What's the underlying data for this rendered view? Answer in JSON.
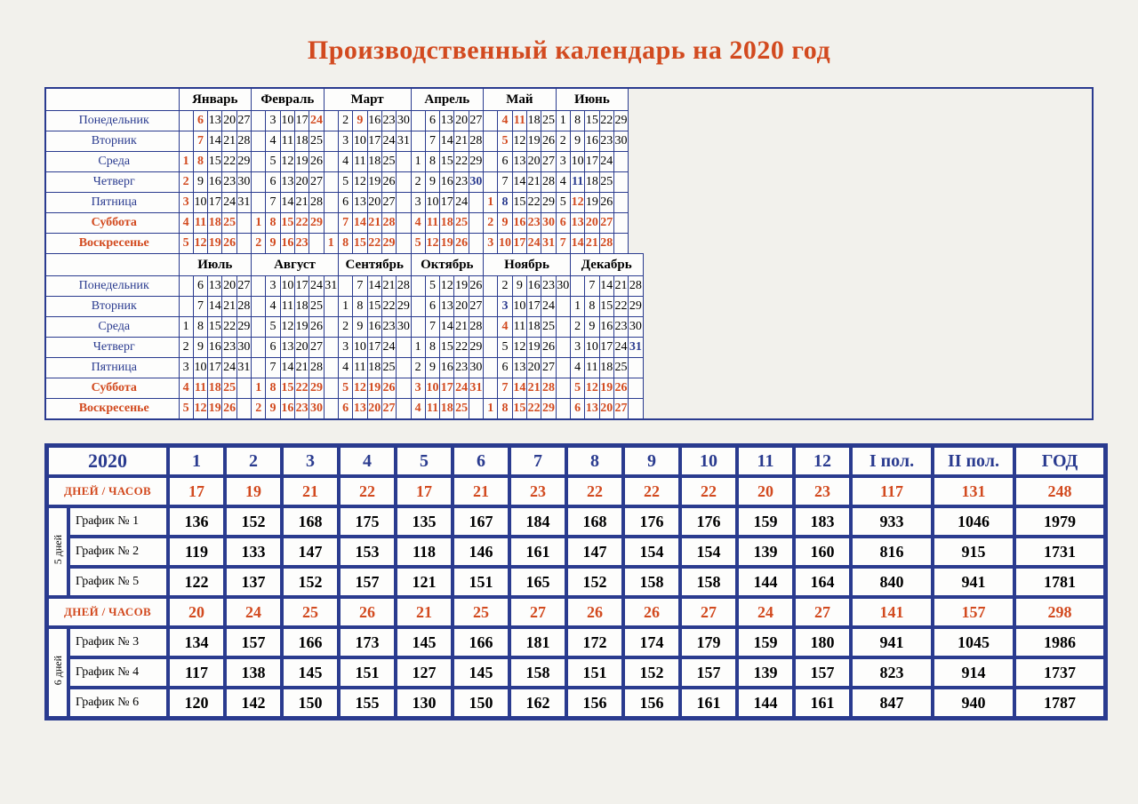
{
  "title": "Производственный календарь на 2020 год",
  "weekdays": [
    "Понедельник",
    "Вторник",
    "Среда",
    "Четверг",
    "Пятница",
    "Суббота",
    "Воскресенье"
  ],
  "weekend_rows": [
    5,
    6
  ],
  "months": [
    "Январь",
    "Февраль",
    "Март",
    "Апрель",
    "Май",
    "Июнь",
    "Июль",
    "Август",
    "Сентябрь",
    "Октябрь",
    "Ноябрь",
    "Декабрь"
  ],
  "month_cols": [
    5,
    5,
    6,
    5,
    5,
    5,
    5,
    6,
    5,
    5,
    6,
    5
  ],
  "month_start_dow": [
    2,
    5,
    6,
    2,
    4,
    0,
    2,
    5,
    1,
    3,
    6,
    1
  ],
  "month_len": [
    31,
    29,
    31,
    30,
    31,
    30,
    31,
    31,
    30,
    31,
    30,
    31
  ],
  "holidays": {
    "0": [
      1,
      2,
      3,
      4,
      5,
      6,
      7,
      8
    ],
    "1": [
      23,
      24
    ],
    "2": [
      8,
      9
    ],
    "4": [
      1,
      4,
      5,
      9,
      11
    ],
    "5": [
      12
    ],
    "10": [
      4
    ]
  },
  "preholidays": {
    "3": [
      30
    ],
    "4": [
      8
    ],
    "5": [
      11
    ],
    "10": [
      3
    ],
    "11": [
      31
    ]
  },
  "summary": {
    "year_label": "2020",
    "month_heads": [
      "1",
      "2",
      "3",
      "4",
      "5",
      "6",
      "7",
      "8",
      "9",
      "10",
      "11",
      "12"
    ],
    "half1": "I пол.",
    "half2": "II пол.",
    "year_head": "ГОД",
    "days_hours_label": "ДНЕЙ / ЧАСОВ",
    "block5_label": "5 дней",
    "block6_label": "6 дней",
    "days5": [
      "17",
      "19",
      "21",
      "22",
      "17",
      "21",
      "23",
      "22",
      "22",
      "22",
      "20",
      "23",
      "117",
      "131",
      "248"
    ],
    "g1_label": "График № 1",
    "g1": [
      "136",
      "152",
      "168",
      "175",
      "135",
      "167",
      "184",
      "168",
      "176",
      "176",
      "159",
      "183",
      "933",
      "1046",
      "1979"
    ],
    "g2_label": "График № 2",
    "g2": [
      "119",
      "133",
      "147",
      "153",
      "118",
      "146",
      "161",
      "147",
      "154",
      "154",
      "139",
      "160",
      "816",
      "915",
      "1731"
    ],
    "g5_label": "График № 5",
    "g5": [
      "122",
      "137",
      "152",
      "157",
      "121",
      "151",
      "165",
      "152",
      "158",
      "158",
      "144",
      "164",
      "840",
      "941",
      "1781"
    ],
    "days6": [
      "20",
      "24",
      "25",
      "26",
      "21",
      "25",
      "27",
      "26",
      "26",
      "27",
      "24",
      "27",
      "141",
      "157",
      "298"
    ],
    "g3_label": "График № 3",
    "g3": [
      "134",
      "157",
      "166",
      "173",
      "145",
      "166",
      "181",
      "172",
      "174",
      "179",
      "159",
      "180",
      "941",
      "1045",
      "1986"
    ],
    "g4_label": "График № 4",
    "g4": [
      "117",
      "138",
      "145",
      "151",
      "127",
      "145",
      "158",
      "151",
      "152",
      "157",
      "139",
      "157",
      "823",
      "914",
      "1737"
    ],
    "g6_label": "График № 6",
    "g6": [
      "120",
      "142",
      "150",
      "155",
      "130",
      "150",
      "162",
      "156",
      "156",
      "161",
      "144",
      "161",
      "847",
      "940",
      "1787"
    ]
  },
  "colors": {
    "border": "#2a3b8f",
    "accent": "#d24a1f",
    "background": "#f2f1ec"
  }
}
